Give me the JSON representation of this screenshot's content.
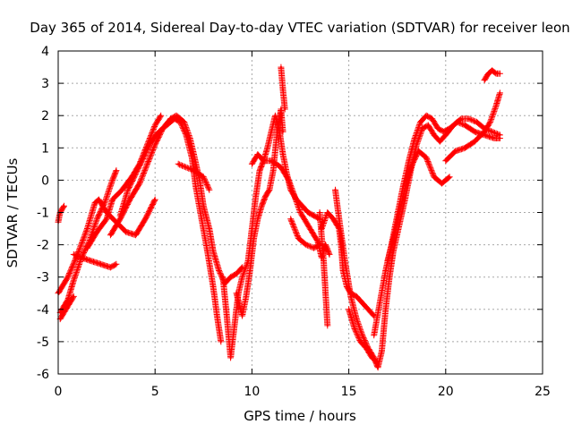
{
  "chart_data": {
    "type": "scatter",
    "title": "Day 365 of 2014, Sidereal Day-to-day VTEC variation (SDTVAR) for receiver leon",
    "xlabel": "GPS time / hours",
    "ylabel": "SDTVAR / TECUs",
    "xlim": [
      0,
      25
    ],
    "ylim": [
      -6,
      4
    ],
    "x_ticks": [
      0,
      5,
      10,
      15,
      20,
      25
    ],
    "y_ticks": [
      -6,
      -5,
      -4,
      -3,
      -2,
      -1,
      0,
      1,
      2,
      3,
      4
    ],
    "grid": true,
    "marker": "+",
    "series": [
      {
        "name": "SDTVAR",
        "color": "#ff0000",
        "tracks": [
          [
            [
              0.0,
              -1.3
            ],
            [
              0.1,
              -1.0
            ],
            [
              0.3,
              -0.8
            ]
          ],
          [
            [
              0.0,
              -3.5
            ],
            [
              0.5,
              -3.0
            ],
            [
              1.0,
              -2.3
            ],
            [
              1.5,
              -1.5
            ],
            [
              1.9,
              -0.7
            ],
            [
              2.1,
              -0.6
            ],
            [
              2.5,
              -1.0
            ],
            [
              3.0,
              -1.3
            ],
            [
              3.5,
              -1.6
            ],
            [
              4.0,
              -1.7
            ],
            [
              4.5,
              -1.2
            ],
            [
              5.0,
              -0.6
            ]
          ],
          [
            [
              0.1,
              -4.1
            ],
            [
              0.5,
              -3.7
            ],
            [
              0.8,
              -3.1
            ],
            [
              1.2,
              -2.4
            ],
            [
              1.6,
              -1.9
            ],
            [
              2.0,
              -1.2
            ],
            [
              2.4,
              -0.7
            ],
            [
              2.8,
              0.0
            ],
            [
              3.0,
              0.3
            ]
          ],
          [
            [
              0.1,
              -4.3
            ],
            [
              0.4,
              -4.0
            ],
            [
              0.8,
              -3.6
            ]
          ],
          [
            [
              0.8,
              -2.3
            ],
            [
              1.2,
              -2.4
            ],
            [
              1.7,
              -2.5
            ],
            [
              2.2,
              -2.6
            ],
            [
              2.7,
              -2.7
            ],
            [
              3.0,
              -2.6
            ]
          ],
          [
            [
              1.5,
              -2.1
            ],
            [
              2.0,
              -1.6
            ],
            [
              2.5,
              -1.2
            ],
            [
              2.8,
              -0.6
            ],
            [
              3.3,
              -0.3
            ],
            [
              3.8,
              0.1
            ],
            [
              4.2,
              0.5
            ],
            [
              4.6,
              1.1
            ],
            [
              5.0,
              1.7
            ],
            [
              5.3,
              2.0
            ]
          ],
          [
            [
              2.7,
              -1.7
            ],
            [
              3.2,
              -1.2
            ],
            [
              3.7,
              -0.6
            ],
            [
              4.2,
              -0.1
            ],
            [
              4.6,
              0.5
            ],
            [
              5.0,
              1.1
            ],
            [
              5.4,
              1.6
            ],
            [
              5.8,
              1.9
            ],
            [
              6.1,
              2.0
            ],
            [
              6.5,
              1.8
            ],
            [
              6.8,
              1.3
            ],
            [
              7.0,
              0.8
            ],
            [
              7.3,
              0.0
            ],
            [
              7.5,
              -0.8
            ],
            [
              7.8,
              -1.5
            ],
            [
              8.0,
              -2.2
            ],
            [
              8.3,
              -2.8
            ],
            [
              8.6,
              -3.2
            ],
            [
              8.9,
              -3.0
            ],
            [
              9.2,
              -2.9
            ],
            [
              9.5,
              -2.7
            ]
          ],
          [
            [
              3.2,
              -1.1
            ],
            [
              3.6,
              -0.3
            ],
            [
              4.0,
              0.2
            ],
            [
              4.4,
              0.7
            ],
            [
              4.8,
              1.2
            ],
            [
              5.2,
              1.5
            ],
            [
              5.6,
              1.7
            ],
            [
              6.0,
              1.9
            ],
            [
              6.3,
              1.8
            ],
            [
              6.6,
              1.4
            ],
            [
              6.9,
              0.7
            ],
            [
              7.1,
              -0.2
            ],
            [
              7.4,
              -1.2
            ],
            [
              7.7,
              -2.2
            ],
            [
              8.0,
              -3.3
            ],
            [
              8.2,
              -4.2
            ],
            [
              8.4,
              -5.0
            ]
          ],
          [
            [
              6.2,
              0.5
            ],
            [
              6.6,
              0.4
            ],
            [
              7.0,
              0.3
            ],
            [
              7.5,
              0.1
            ],
            [
              7.8,
              -0.3
            ]
          ],
          [
            [
              8.5,
              -3.0
            ],
            [
              8.7,
              -4.2
            ],
            [
              8.9,
              -5.5
            ],
            [
              9.1,
              -4.5
            ],
            [
              9.3,
              -3.5
            ],
            [
              9.5,
              -3.0
            ],
            [
              9.8,
              -2.5
            ],
            [
              10.0,
              -1.5
            ],
            [
              10.2,
              -0.5
            ],
            [
              10.4,
              0.3
            ],
            [
              10.6,
              0.6
            ],
            [
              10.8,
              1.0
            ],
            [
              11.0,
              1.5
            ],
            [
              11.2,
              2.0
            ],
            [
              11.4,
              1.6
            ],
            [
              11.6,
              0.8
            ],
            [
              11.8,
              0.2
            ],
            [
              12.0,
              -0.3
            ],
            [
              12.3,
              -0.6
            ],
            [
              12.6,
              -0.8
            ],
            [
              12.9,
              -1.0
            ],
            [
              13.2,
              -1.1
            ],
            [
              13.5,
              -1.2
            ]
          ],
          [
            [
              9.2,
              -3.5
            ],
            [
              9.5,
              -4.2
            ],
            [
              9.7,
              -3.6
            ],
            [
              9.9,
              -2.8
            ],
            [
              10.1,
              -1.8
            ],
            [
              10.3,
              -1.2
            ],
            [
              10.5,
              -0.8
            ],
            [
              10.7,
              -0.5
            ],
            [
              10.9,
              -0.3
            ],
            [
              11.1,
              0.3
            ],
            [
              11.3,
              1.5
            ],
            [
              11.5,
              2.2
            ],
            [
              11.6,
              1.5
            ]
          ],
          [
            [
              11.5,
              3.5
            ],
            [
              11.6,
              2.8
            ],
            [
              11.7,
              2.2
            ]
          ],
          [
            [
              10.0,
              0.5
            ],
            [
              10.3,
              0.8
            ],
            [
              10.6,
              0.6
            ],
            [
              11.0,
              0.6
            ],
            [
              11.5,
              0.4
            ],
            [
              11.9,
              0.0
            ],
            [
              12.2,
              -0.5
            ],
            [
              12.5,
              -1.0
            ],
            [
              12.8,
              -1.3
            ],
            [
              13.1,
              -1.6
            ],
            [
              13.4,
              -1.9
            ],
            [
              13.6,
              -2.4
            ],
            [
              13.8,
              -2.0
            ],
            [
              14.0,
              -2.3
            ]
          ],
          [
            [
              12.0,
              -1.2
            ],
            [
              12.4,
              -1.8
            ],
            [
              12.8,
              -2.0
            ],
            [
              13.2,
              -2.1
            ],
            [
              13.5,
              -2.0
            ]
          ],
          [
            [
              13.5,
              -1.0
            ],
            [
              13.7,
              -2.5
            ],
            [
              13.8,
              -3.5
            ],
            [
              13.9,
              -4.5
            ]
          ],
          [
            [
              13.6,
              -1.5
            ],
            [
              13.9,
              -1.0
            ],
            [
              14.2,
              -1.2
            ],
            [
              14.5,
              -1.5
            ],
            [
              14.6,
              -2.0
            ],
            [
              14.7,
              -2.8
            ],
            [
              14.9,
              -3.3
            ],
            [
              15.1,
              -3.5
            ],
            [
              15.4,
              -3.6
            ],
            [
              15.7,
              -3.8
            ],
            [
              16.0,
              -4.0
            ],
            [
              16.3,
              -4.2
            ]
          ],
          [
            [
              14.3,
              -0.3
            ],
            [
              14.5,
              -1.2
            ],
            [
              14.8,
              -2.5
            ],
            [
              15.1,
              -3.6
            ],
            [
              15.4,
              -4.3
            ],
            [
              15.7,
              -4.8
            ],
            [
              16.0,
              -5.2
            ],
            [
              16.3,
              -5.5
            ],
            [
              16.5,
              -5.8
            ],
            [
              16.7,
              -5.3
            ],
            [
              16.9,
              -4.0
            ],
            [
              17.1,
              -3.0
            ],
            [
              17.3,
              -2.2
            ],
            [
              17.6,
              -1.4
            ],
            [
              17.9,
              -0.6
            ],
            [
              18.2,
              0.3
            ],
            [
              18.5,
              1.1
            ],
            [
              18.8,
              1.6
            ],
            [
              19.1,
              1.7
            ],
            [
              19.4,
              1.4
            ],
            [
              19.7,
              1.2
            ],
            [
              20.0,
              1.4
            ],
            [
              20.4,
              1.7
            ],
            [
              20.8,
              1.9
            ],
            [
              21.2,
              1.9
            ],
            [
              21.6,
              1.8
            ],
            [
              22.0,
              1.6
            ],
            [
              22.4,
              1.5
            ],
            [
              22.8,
              1.4
            ]
          ],
          [
            [
              15.0,
              -4.0
            ],
            [
              15.3,
              -4.6
            ],
            [
              15.6,
              -5.0
            ],
            [
              15.9,
              -5.2
            ],
            [
              16.2,
              -5.5
            ],
            [
              16.4,
              -5.6
            ]
          ],
          [
            [
              16.3,
              -4.8
            ],
            [
              16.6,
              -3.8
            ],
            [
              16.9,
              -2.8
            ],
            [
              17.2,
              -2.0
            ],
            [
              17.5,
              -1.1
            ],
            [
              17.8,
              -0.2
            ],
            [
              18.1,
              0.6
            ],
            [
              18.4,
              1.3
            ],
            [
              18.7,
              1.8
            ],
            [
              19.0,
              2.0
            ],
            [
              19.3,
              1.9
            ],
            [
              19.6,
              1.6
            ],
            [
              19.9,
              1.5
            ],
            [
              20.2,
              1.6
            ],
            [
              20.6,
              1.8
            ],
            [
              21.0,
              1.7
            ],
            [
              21.5,
              1.5
            ],
            [
              22.0,
              1.4
            ],
            [
              22.5,
              1.3
            ],
            [
              22.8,
              1.3
            ]
          ],
          [
            [
              17.0,
              -2.5
            ],
            [
              17.4,
              -1.6
            ],
            [
              17.8,
              -0.5
            ],
            [
              18.2,
              0.4
            ],
            [
              18.6,
              0.9
            ],
            [
              19.0,
              0.7
            ],
            [
              19.4,
              0.1
            ],
            [
              19.8,
              -0.1
            ],
            [
              20.2,
              0.1
            ]
          ],
          [
            [
              20.0,
              0.6
            ],
            [
              20.5,
              0.9
            ],
            [
              21.0,
              1.0
            ],
            [
              21.5,
              1.2
            ],
            [
              22.0,
              1.5
            ],
            [
              22.3,
              1.8
            ],
            [
              22.6,
              2.3
            ],
            [
              22.8,
              2.7
            ]
          ],
          [
            [
              22.0,
              3.1
            ],
            [
              22.2,
              3.3
            ],
            [
              22.4,
              3.4
            ],
            [
              22.6,
              3.3
            ],
            [
              22.8,
              3.3
            ]
          ]
        ]
      }
    ]
  }
}
